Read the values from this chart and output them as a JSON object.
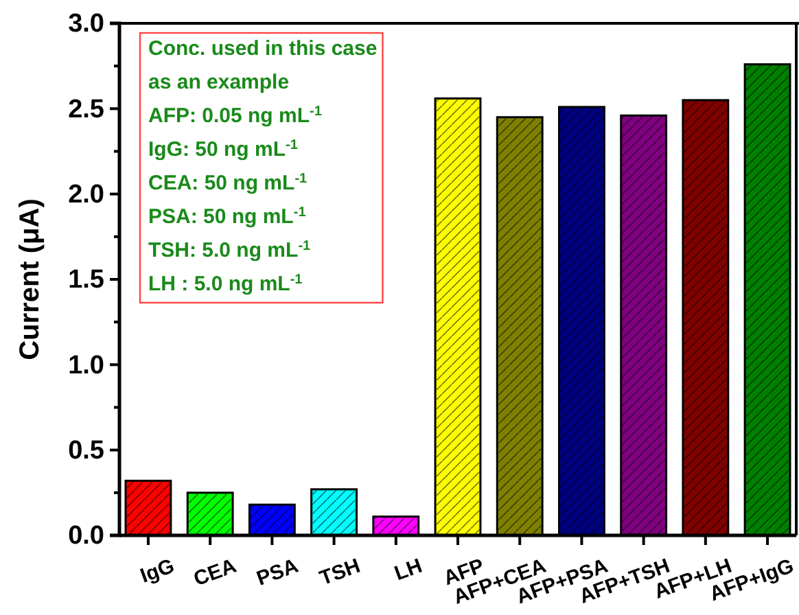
{
  "chart_data": {
    "type": "bar",
    "ylabel": "Current (μA)",
    "categories": [
      "IgG",
      "CEA",
      "PSA",
      "TSH",
      "LH",
      "AFP",
      "AFP+CEA",
      "AFP+PSA",
      "AFP+TSH",
      "AFP+LH",
      "AFP+IgG"
    ],
    "values": [
      0.32,
      0.25,
      0.18,
      0.27,
      0.11,
      2.56,
      2.45,
      2.51,
      2.46,
      2.55,
      2.76
    ],
    "colors": [
      "#ff0000",
      "#00ff00",
      "#0000ff",
      "#00ffff",
      "#ff00ff",
      "#ffff00",
      "#808000",
      "#000080",
      "#800080",
      "#800000",
      "#008000"
    ],
    "ylim": [
      0,
      3
    ],
    "yticks": [
      {
        "value": 0,
        "label": "0.0"
      },
      {
        "value": 0.5,
        "label": "0.5"
      },
      {
        "value": 1,
        "label": "1.0"
      },
      {
        "value": 1.5,
        "label": "1.5"
      },
      {
        "value": 2,
        "label": "2.0"
      },
      {
        "value": 2.5,
        "label": "2.5"
      },
      {
        "value": 3,
        "label": "3.0"
      }
    ],
    "annotations": [
      "Conc. used in this case",
      "as an example",
      "AFP: 0.05 ng mL$^{-1}$",
      "IgG: 50 ng mL$^{-1}$",
      "CEA: 50 ng mL$^{-1}$",
      "PSA: 50 ng mL$^{-1}$",
      "TSH: 5.0 ng mL$^{-1}$",
      "LH : 5.0 ng mL$^{-1}$"
    ]
  }
}
